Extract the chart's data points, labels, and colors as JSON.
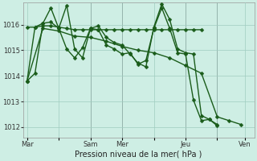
{
  "xlabel": "Pression niveau de la mer( hPa )",
  "bg_color": "#ceeee4",
  "grid_color": "#a0ccc0",
  "line_color": "#1a5c1a",
  "vline_color": "#808080",
  "ylim": [
    1011.6,
    1016.85
  ],
  "xlim": [
    0,
    175
  ],
  "xtick_labels": [
    "Mar",
    "",
    "Sam",
    "Mer",
    "",
    "Jeu",
    "",
    "Ven"
  ],
  "xtick_positions": [
    3,
    27,
    51,
    75,
    99,
    123,
    147,
    168
  ],
  "ytick_values": [
    1012,
    1013,
    1014,
    1015,
    1016
  ],
  "series": [
    {
      "x": [
        3,
        9,
        15,
        21,
        27,
        33,
        39,
        45,
        51,
        57,
        63,
        69,
        75,
        81,
        87,
        93,
        99,
        105,
        111,
        117,
        123,
        129,
        135
      ],
      "y": [
        1015.9,
        1015.9,
        1015.95,
        1015.95,
        1015.9,
        1015.85,
        1015.8,
        1015.8,
        1015.8,
        1015.8,
        1015.8,
        1015.8,
        1015.8,
        1015.8,
        1015.8,
        1015.8,
        1015.8,
        1015.8,
        1015.8,
        1015.8,
        1015.8,
        1015.8,
        1015.8
      ]
    },
    {
      "x": [
        3,
        15,
        27,
        39,
        51,
        63,
        75,
        87,
        99,
        111,
        123,
        135,
        147,
        156,
        165
      ],
      "y": [
        1013.8,
        1015.85,
        1015.75,
        1015.55,
        1015.5,
        1015.35,
        1015.15,
        1015.0,
        1014.9,
        1014.7,
        1014.4,
        1014.1,
        1012.4,
        1012.25,
        1012.1
      ]
    },
    {
      "x": [
        3,
        9,
        15,
        21,
        27,
        33,
        39,
        45,
        51,
        57,
        63,
        69,
        75,
        81,
        87,
        93,
        99,
        105,
        111,
        117,
        123,
        129,
        135,
        141,
        147,
        156,
        165
      ],
      "y": [
        1013.8,
        1014.1,
        1016.05,
        1016.1,
        1015.85,
        1016.75,
        1015.05,
        1014.7,
        1015.85,
        1015.95,
        1015.5,
        1015.3,
        1015.2,
        1014.85,
        1014.5,
        1014.35,
        1015.9,
        1016.8,
        1016.2,
        1015.05,
        1014.9,
        1014.85,
        1012.45,
        1012.3,
        1012.1,
        null,
        null
      ]
    },
    {
      "x": [
        3,
        9,
        15,
        21,
        27,
        33,
        39,
        45,
        51,
        57,
        63,
        69,
        75,
        81,
        87,
        93,
        99,
        105,
        111,
        117,
        123,
        129,
        135,
        141,
        147,
        156,
        165
      ],
      "y": [
        1013.8,
        1015.9,
        1016.05,
        1016.65,
        1015.85,
        1015.05,
        1014.7,
        1015.1,
        1015.85,
        1015.8,
        1015.2,
        1015.05,
        1014.85,
        1014.9,
        1014.45,
        1014.6,
        1015.85,
        1016.65,
        1015.85,
        1014.9,
        1014.85,
        1013.05,
        1012.25,
        1012.3,
        1012.05,
        null,
        null
      ]
    }
  ],
  "vline_positions": [
    51,
    75,
    123,
    147
  ],
  "marker_size": 2.5,
  "linewidth": 1.0
}
